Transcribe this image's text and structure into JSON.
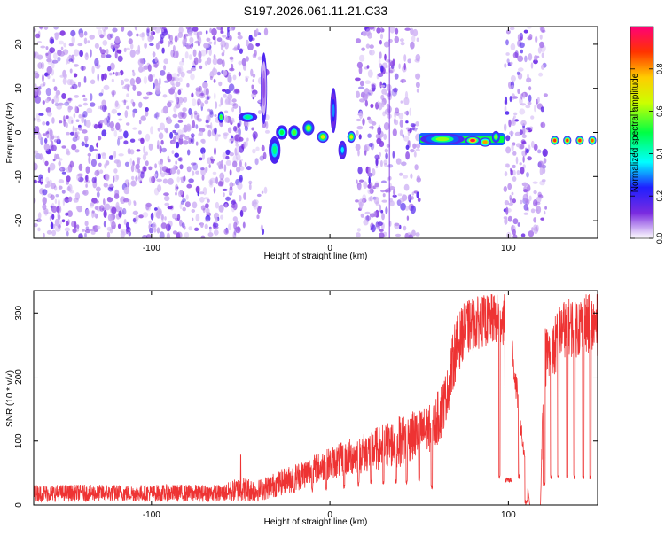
{
  "title": "S197.2026.061.11.21.C33",
  "chart_data": [
    {
      "type": "heatmap",
      "name": "spectrogram",
      "xlabel": "Height of straight line (km)",
      "ylabel": "Frequency (Hz)",
      "xlim": [
        -166,
        150
      ],
      "ylim": [
        -24,
        24
      ],
      "xticks": [
        -100,
        0,
        100
      ],
      "yticks": [
        -20,
        -10,
        0,
        10,
        20
      ],
      "colorbar": {
        "label": "Normalized spectral amplitude",
        "range": [
          0.0,
          1.0
        ],
        "ticks": [
          0.0,
          0.2,
          0.4,
          0.6,
          0.8
        ]
      },
      "noise_regions": [
        {
          "x": [
            -166,
            -48
          ],
          "density": 0.8
        },
        {
          "x": [
            -48,
            -35
          ],
          "density": 0.45
        },
        {
          "x": [
            15,
            50
          ],
          "density": 0.7
        },
        {
          "x": [
            98,
            121
          ],
          "density": 0.7
        }
      ],
      "signal_blobs": [
        {
          "x": -61,
          "f": 3.5,
          "dx": 1.5,
          "df": 1.2,
          "amp": 0.55
        },
        {
          "x": -46,
          "f": 3.5,
          "dx": 5,
          "df": 1.0,
          "amp": 0.45
        },
        {
          "x": -37,
          "f": 10,
          "dx": 1.5,
          "df": 8,
          "amp": 0.1
        },
        {
          "x": -31,
          "f": -4,
          "dx": 3,
          "df": 3,
          "amp": 0.45
        },
        {
          "x": -27,
          "f": 0,
          "dx": 3,
          "df": 1.5,
          "amp": 0.5
        },
        {
          "x": -20,
          "f": 0,
          "dx": 3,
          "df": 1.5,
          "amp": 0.55
        },
        {
          "x": -12,
          "f": 1,
          "dx": 3,
          "df": 1.5,
          "amp": 0.6
        },
        {
          "x": -4,
          "f": -1,
          "dx": 3,
          "df": 1.2,
          "amp": 0.7
        },
        {
          "x": 2,
          "f": 5,
          "dx": 1.5,
          "df": 5,
          "amp": 0.3
        },
        {
          "x": 7,
          "f": -4,
          "dx": 2,
          "df": 2,
          "amp": 0.35
        },
        {
          "x": 12,
          "f": -1,
          "dx": 2,
          "df": 1.2,
          "amp": 0.7
        },
        {
          "x": 63,
          "f": -1.5,
          "dx": 12,
          "df": 1.2,
          "amp": 0.6
        },
        {
          "x": 80,
          "f": -1.8,
          "dx": 4,
          "df": 0.8,
          "amp": 0.95
        },
        {
          "x": 87,
          "f": -2.2,
          "dx": 3,
          "df": 0.9,
          "amp": 0.8
        },
        {
          "x": 93,
          "f": -1,
          "dx": 2,
          "df": 1.2,
          "amp": 0.6
        },
        {
          "x": 126,
          "f": -1.8,
          "dx": 2,
          "df": 0.9,
          "amp": 0.9
        },
        {
          "x": 133,
          "f": -1.8,
          "dx": 2,
          "df": 0.9,
          "amp": 0.9
        },
        {
          "x": 140,
          "f": -1.8,
          "dx": 2,
          "df": 0.9,
          "amp": 0.9
        },
        {
          "x": 147,
          "f": -1.8,
          "dx": 2,
          "df": 0.9,
          "amp": 0.85
        }
      ],
      "baseline_band": {
        "x": [
          50,
          98
        ],
        "f": -1.5,
        "amp": 0.5
      }
    },
    {
      "type": "line",
      "name": "snr",
      "xlabel": "Height of straight line (km)",
      "ylabel": "SNR (10 * v/v)",
      "xlim": [
        -166,
        150
      ],
      "ylim": [
        0,
        335
      ],
      "xticks": [
        -100,
        0,
        100
      ],
      "yticks": [
        0,
        100,
        200,
        300
      ],
      "series": [
        {
          "name": "SNR",
          "color": "#ee3333",
          "envelope": {
            "x": [
              -166,
              -60,
              -50,
              -40,
              -20,
              0,
              20,
              40,
              50,
              58,
              62,
              66,
              70,
              75,
              80,
              90,
              100,
              112,
              115,
              118,
              120,
              125,
              130,
              140,
              150
            ],
            "lo": [
              5,
              5,
              5,
              5,
              20,
              40,
              50,
              60,
              75,
              85,
              100,
              140,
              190,
              230,
              240,
              250,
              250,
              0,
              0,
              0,
              180,
              190,
              230,
              230,
              230
            ],
            "hi": [
              32,
              32,
              45,
              40,
              65,
              90,
              115,
              140,
              150,
              160,
              190,
              215,
              290,
              315,
              325,
              330,
              330,
              0,
              0,
              0,
              280,
              290,
              320,
              330,
              330
            ]
          },
          "dropouts": [
            {
              "x": -20,
              "w": 0.6,
              "floor": 18
            },
            {
              "x": -10,
              "w": 0.6,
              "floor": 20
            },
            {
              "x": -2,
              "w": 0.6,
              "floor": 22
            },
            {
              "x": 8,
              "w": 0.7,
              "floor": 25
            },
            {
              "x": 16,
              "w": 0.7,
              "floor": 28
            },
            {
              "x": 23,
              "w": 0.7,
              "floor": 30
            },
            {
              "x": 30,
              "w": 0.7,
              "floor": 30
            },
            {
              "x": 37,
              "w": 0.7,
              "floor": 32
            },
            {
              "x": 43,
              "w": 0.7,
              "floor": 32
            },
            {
              "x": 50,
              "w": 0.7,
              "floor": 35
            },
            {
              "x": 57,
              "w": 0.8,
              "floor": 25
            },
            {
              "x": 95,
              "w": 0.8,
              "floor": 40
            },
            {
              "x": 100,
              "w": 4,
              "floor": 35
            },
            {
              "x": 106,
              "w": 0.8,
              "floor": 40
            },
            {
              "x": 110,
              "w": 1.5,
              "floor": 0
            },
            {
              "x": 120,
              "w": 1.2,
              "floor": 30
            },
            {
              "x": 124,
              "w": 0.8,
              "floor": 40
            },
            {
              "x": 128,
              "w": 0.8,
              "floor": 40
            },
            {
              "x": 133,
              "w": 0.8,
              "floor": 40
            },
            {
              "x": 137,
              "w": 0.8,
              "floor": 40
            },
            {
              "x": 142,
              "w": 0.8,
              "floor": 40
            },
            {
              "x": 146,
              "w": 0.8,
              "floor": 40
            }
          ],
          "spikes": [
            {
              "x": -50,
              "v": 78
            },
            {
              "x": 96,
              "v": 290
            }
          ]
        }
      ]
    }
  ]
}
